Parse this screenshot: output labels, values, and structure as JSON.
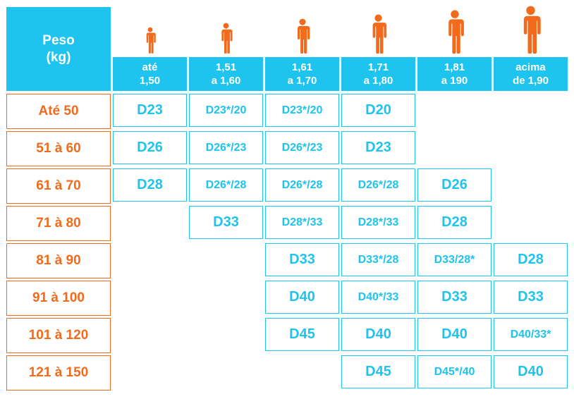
{
  "header": {
    "peso_line1": "Peso",
    "peso_line2": "(kg)"
  },
  "colors": {
    "accent_blue": "#1EC3EE",
    "accent_orange": "#F26A1B"
  },
  "figure_icon": "person-icon",
  "heights": [
    {
      "line1": "até",
      "line2": "1,50"
    },
    {
      "line1": "1,51",
      "line2": "a 1,60"
    },
    {
      "line1": "1,61",
      "line2": "a 1,70"
    },
    {
      "line1": "1,71",
      "line2": "a 1,80"
    },
    {
      "line1": "1,81",
      "line2": "a 190"
    },
    {
      "line1": "acima",
      "line2": "de 1,90"
    }
  ],
  "rows": [
    {
      "weight": "Até 50",
      "cells": [
        "D23",
        "D23*/20",
        "D23*/20",
        "D20",
        "",
        ""
      ]
    },
    {
      "weight": "51 à 60",
      "cells": [
        "D26",
        "D26*/23",
        "D26*/23",
        "D23",
        "",
        ""
      ]
    },
    {
      "weight": "61 à 70",
      "cells": [
        "D28",
        "D26*/28",
        "D26*/28",
        "D26*/28",
        "D26",
        ""
      ]
    },
    {
      "weight": "71 à 80",
      "cells": [
        "",
        "D33",
        "D28*/33",
        "D28*/33",
        "D28",
        ""
      ]
    },
    {
      "weight": "81 à 90",
      "cells": [
        "",
        "",
        "D33",
        "D33*/28",
        "D33/28*",
        "D28"
      ]
    },
    {
      "weight": "91 à 100",
      "cells": [
        "",
        "",
        "D40",
        "D40*/33",
        "D33",
        "D33"
      ]
    },
    {
      "weight": "101 à 120",
      "cells": [
        "",
        "",
        "D45",
        "D40",
        "D40",
        "D40/33*"
      ]
    },
    {
      "weight": "121 à 150",
      "cells": [
        "",
        "",
        "",
        "D45",
        "D45*/40",
        "D40"
      ]
    }
  ]
}
